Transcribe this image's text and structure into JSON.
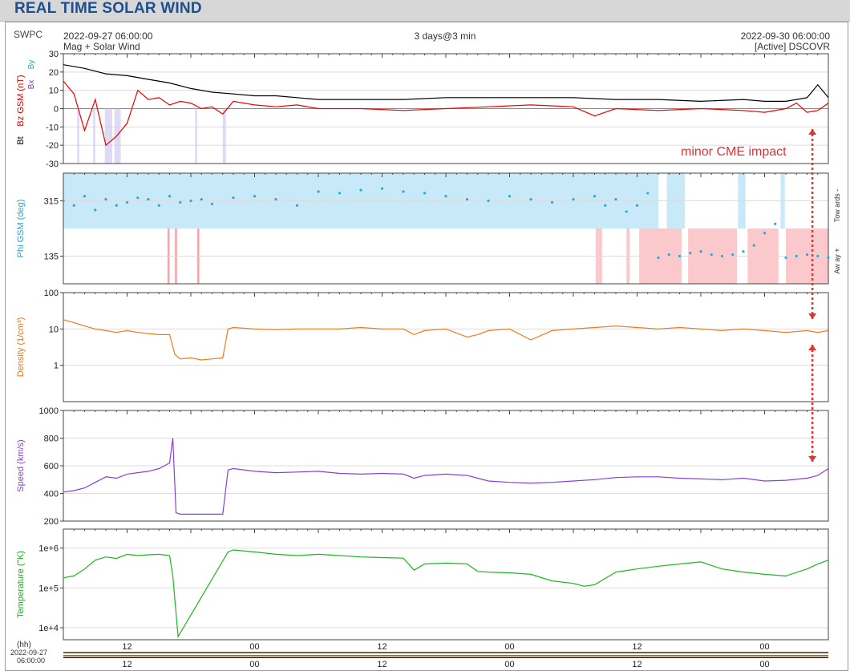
{
  "page": {
    "title": "REAL TIME SOLAR WIND",
    "source": "SWPC",
    "start_time": "2022-09-27 06:00:00",
    "end_time": "2022-09-30 06:00:00",
    "span": "3 days@3 min",
    "subtitle": "Mag + Solar Wind",
    "spacecraft": "[Active] DSCOVR",
    "annotation": "minor CME impact",
    "hh_label": "(hh)",
    "axis_start_date": "2022-09-27",
    "axis_start_clock": "06:00:00"
  },
  "chart_data": [
    {
      "type": "line",
      "ylabel_parts": [
        "Bt",
        "Bz GSM (nT)",
        "Bx",
        "By"
      ],
      "ylim": [
        -30,
        30
      ],
      "yticks": [
        "30",
        "20",
        "10",
        "0",
        "-10",
        "-20",
        "-30"
      ],
      "grid": true,
      "x_unit": "hours from 2022-09-27 06:00",
      "series": [
        {
          "name": "Bt",
          "color": "#000000",
          "x": [
            0,
            2,
            4,
            6,
            8,
            10,
            12,
            14,
            16,
            18,
            20,
            22,
            24,
            28,
            32,
            36,
            40,
            44,
            48,
            52,
            56,
            60,
            64,
            66,
            68,
            69,
            70,
            71,
            72
          ],
          "y": [
            24,
            22,
            19,
            18,
            16,
            14,
            11,
            9,
            8,
            7,
            7,
            6,
            5,
            5,
            5,
            6,
            6,
            6,
            6,
            5,
            5,
            4,
            5,
            4,
            4,
            5,
            6,
            13,
            6
          ]
        },
        {
          "name": "Bz GSM",
          "color": "#ee0000",
          "x": [
            0,
            1,
            2,
            3,
            4,
            5,
            6,
            7,
            8,
            9,
            10,
            11,
            12,
            13,
            14,
            15,
            16,
            18,
            20,
            22,
            24,
            28,
            32,
            36,
            40,
            44,
            48,
            50,
            52,
            56,
            60,
            64,
            66,
            68,
            69,
            70,
            71,
            72
          ],
          "y": [
            15,
            8,
            -12,
            5,
            -20,
            -15,
            -8,
            10,
            5,
            6,
            2,
            4,
            3,
            0,
            1,
            -3,
            4,
            2,
            1,
            2,
            0,
            0,
            -1,
            0,
            1,
            2,
            1,
            -4,
            0,
            -1,
            0,
            -1,
            -2,
            0,
            3,
            -2,
            -1,
            3
          ]
        }
      ]
    },
    {
      "type": "scatter",
      "ylabel": "Phi GSM (deg)",
      "ylim": [
        45,
        405
      ],
      "yticks": [
        "315",
        "135"
      ],
      "side_labels": [
        "Tow ards -",
        "Aw ay +"
      ],
      "grid": true,
      "x_unit": "hours from 2022-09-27 06:00",
      "series": [
        {
          "name": "Phi GSM",
          "color": "#2aa9d8",
          "x": [
            0,
            1,
            2,
            3,
            4,
            5,
            6,
            7,
            8,
            9,
            10,
            11,
            12,
            13,
            14,
            16,
            18,
            20,
            22,
            24,
            26,
            28,
            30,
            32,
            34,
            36,
            38,
            40,
            42,
            44,
            46,
            48,
            50,
            51,
            52,
            53,
            54,
            55,
            56,
            57,
            58,
            59,
            60,
            61,
            62,
            63,
            64,
            65,
            66,
            67,
            68,
            69,
            70,
            71,
            72
          ],
          "y": [
            315,
            300,
            330,
            285,
            320,
            300,
            310,
            325,
            320,
            300,
            330,
            310,
            315,
            320,
            305,
            325,
            330,
            320,
            300,
            345,
            340,
            350,
            355,
            345,
            340,
            330,
            320,
            315,
            330,
            320,
            310,
            320,
            330,
            300,
            320,
            280,
            300,
            340,
            130,
            140,
            135,
            145,
            150,
            140,
            135,
            140,
            150,
            170,
            210,
            240,
            130,
            135,
            140,
            135,
            130
          ]
        }
      ]
    },
    {
      "type": "line",
      "ylabel": "Density (1/cm³)",
      "scale": "log",
      "ylim": [
        0.1,
        100
      ],
      "yticks": [
        "100",
        "10",
        "1"
      ],
      "grid": true,
      "x_unit": "hours from 2022-09-27 06:00",
      "series": [
        {
          "name": "Density",
          "color": "#f07a1a",
          "x": [
            0,
            1,
            2,
            3,
            4,
            5,
            6,
            7,
            8,
            9,
            10,
            10.5,
            11,
            12,
            13,
            14,
            15,
            15.5,
            16,
            18,
            20,
            22,
            24,
            26,
            28,
            30,
            32,
            33,
            34,
            36,
            38,
            39,
            40,
            42,
            44,
            46,
            48,
            50,
            52,
            54,
            56,
            58,
            60,
            62,
            64,
            66,
            68,
            70,
            71,
            72
          ],
          "y": [
            18,
            15,
            12,
            10,
            9,
            8,
            9,
            8,
            7.5,
            7,
            7,
            2,
            1.5,
            1.6,
            1.4,
            1.5,
            1.6,
            10,
            11,
            10,
            9.5,
            10,
            10,
            10,
            11,
            10,
            10,
            7,
            9,
            10,
            6,
            7,
            9,
            10,
            5,
            9,
            10,
            11,
            12,
            11,
            10,
            11,
            10,
            9,
            10,
            9,
            8,
            9,
            8,
            9
          ]
        }
      ]
    },
    {
      "type": "line",
      "ylabel": "Speed (km/s)",
      "ylim": [
        200,
        1000
      ],
      "yticks": [
        "1000",
        "800",
        "600",
        "400",
        "200"
      ],
      "grid": true,
      "x_unit": "hours from 2022-09-27 06:00",
      "series": [
        {
          "name": "Speed",
          "color": "#8a3fd6",
          "x": [
            0,
            1,
            2,
            3,
            4,
            5,
            6,
            7,
            8,
            9,
            10,
            10.3,
            10.6,
            11,
            12,
            13,
            14,
            15,
            15.5,
            16,
            18,
            20,
            22,
            24,
            26,
            28,
            30,
            32,
            33,
            34,
            36,
            38,
            39,
            40,
            42,
            44,
            46,
            48,
            50,
            52,
            54,
            56,
            58,
            60,
            62,
            64,
            66,
            68,
            70,
            71,
            72
          ],
          "y": [
            410,
            420,
            440,
            480,
            520,
            510,
            540,
            550,
            560,
            580,
            620,
            800,
            260,
            250,
            250,
            250,
            250,
            250,
            570,
            580,
            560,
            550,
            555,
            560,
            545,
            540,
            545,
            540,
            510,
            530,
            540,
            530,
            510,
            490,
            480,
            475,
            480,
            490,
            500,
            515,
            520,
            520,
            510,
            505,
            500,
            510,
            490,
            495,
            510,
            530,
            580
          ]
        }
      ]
    },
    {
      "type": "line",
      "ylabel": "Temperature (°K)",
      "scale": "log",
      "ylim": [
        5000,
        3000000
      ],
      "yticks": [
        "1e+6",
        "1e+5",
        "1e+4"
      ],
      "grid": true,
      "x_unit": "hours from 2022-09-27 06:00",
      "series": [
        {
          "name": "Temperature",
          "color": "#1cb81c",
          "x": [
            0,
            1,
            2,
            3,
            4,
            5,
            6,
            7,
            8,
            9,
            10,
            10.3,
            10.8,
            15.5,
            16,
            18,
            20,
            22,
            24,
            26,
            28,
            30,
            32,
            33,
            34,
            36,
            38,
            39,
            40,
            42,
            44,
            46,
            48,
            49,
            50,
            52,
            54,
            56,
            58,
            60,
            62,
            64,
            66,
            68,
            70,
            71,
            72
          ],
          "y": [
            180000,
            200000,
            300000,
            500000,
            600000,
            550000,
            700000,
            650000,
            680000,
            700000,
            650000,
            200000,
            6000,
            800000,
            900000,
            800000,
            700000,
            650000,
            700000,
            650000,
            600000,
            580000,
            560000,
            280000,
            400000,
            420000,
            400000,
            260000,
            250000,
            240000,
            220000,
            150000,
            130000,
            110000,
            120000,
            250000,
            300000,
            350000,
            400000,
            450000,
            300000,
            250000,
            220000,
            200000,
            300000,
            400000,
            500000
          ]
        }
      ]
    },
    {
      "type": "table",
      "x_ticks_top": [
        "12",
        "00",
        "12",
        "00",
        "12",
        "00"
      ],
      "x_ticks_bottom": [
        "12",
        "00",
        "12",
        "00",
        "12",
        "00"
      ],
      "x_tick_hours": [
        6,
        18,
        30,
        42,
        54,
        66
      ]
    }
  ]
}
